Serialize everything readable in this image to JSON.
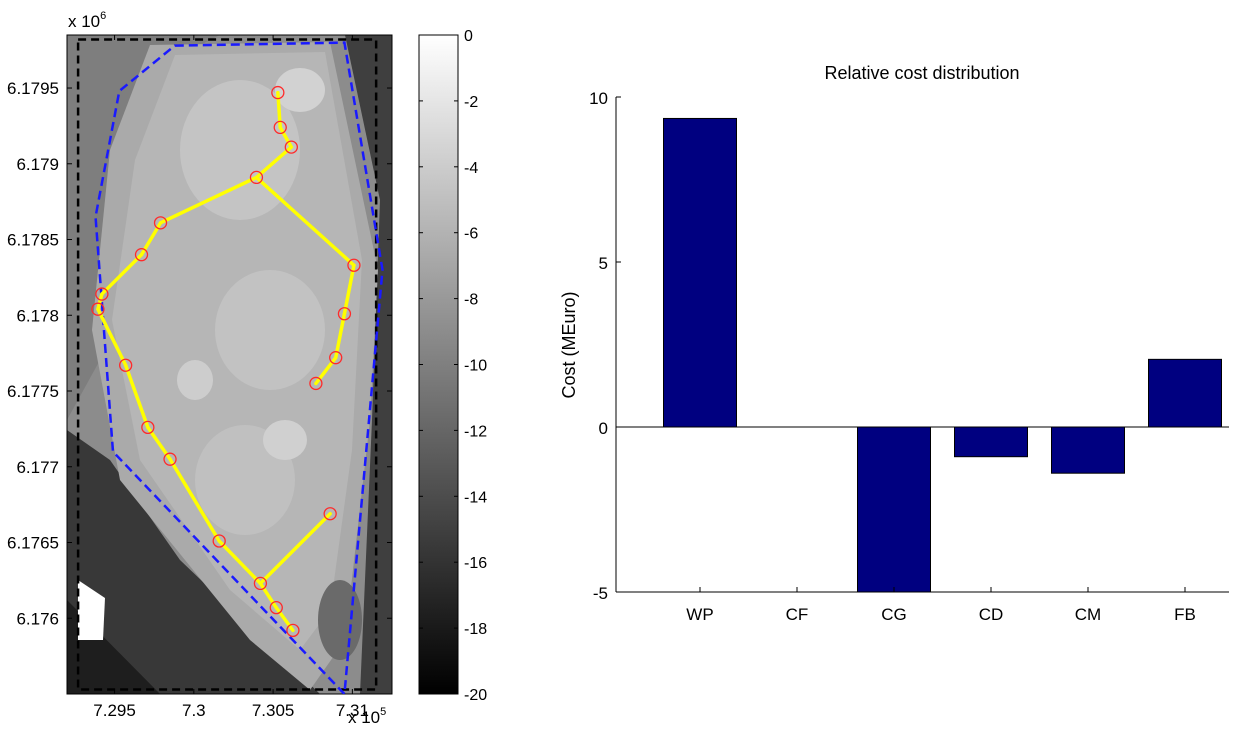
{
  "chart_data": [
    {
      "type": "scatter",
      "subtype": "map-with-layout",
      "title": "",
      "xlabel": "",
      "ylabel": "",
      "x_exponent_label": "x 10",
      "x_exponent": "5",
      "y_exponent_label": "x 10",
      "y_exponent": "6",
      "xlim": [
        729200,
        731250
      ],
      "ylim": [
        6175500,
        6179850
      ],
      "xticks": [
        729500,
        730000,
        730500,
        731000
      ],
      "xtick_labels": [
        "7.295",
        "7.3",
        "7.305",
        "7.31"
      ],
      "yticks": [
        6176000,
        6176500,
        6177000,
        6177500,
        6178000,
        6178500,
        6179000,
        6179500
      ],
      "ytick_labels": [
        "6.176",
        "6.1765",
        "6.177",
        "6.1775",
        "6.178",
        "6.1785",
        "6.179",
        "6.1795"
      ],
      "colorbar": {
        "range": [
          -20,
          0
        ],
        "ticks": [
          0,
          -2,
          -4,
          -6,
          -8,
          -10,
          -12,
          -14,
          -16,
          -18,
          -20
        ],
        "tick_labels": [
          "0",
          "-2",
          "-4",
          "-6",
          "-8",
          "-10",
          "-12",
          "-14",
          "-16",
          "-18",
          "-20"
        ]
      },
      "turbines": [
        {
          "x": 730530,
          "y": 6179470
        },
        {
          "x": 730545,
          "y": 6179240
        },
        {
          "x": 730615,
          "y": 6179110
        },
        {
          "x": 730395,
          "y": 6178910
        },
        {
          "x": 729790,
          "y": 6178610
        },
        {
          "x": 729670,
          "y": 6178400
        },
        {
          "x": 729420,
          "y": 6178140
        },
        {
          "x": 729395,
          "y": 6178040
        },
        {
          "x": 729570,
          "y": 6177670
        },
        {
          "x": 729710,
          "y": 6177260
        },
        {
          "x": 729850,
          "y": 6177050
        },
        {
          "x": 730160,
          "y": 6176510
        },
        {
          "x": 730420,
          "y": 6176230
        },
        {
          "x": 730520,
          "y": 6176070
        },
        {
          "x": 730625,
          "y": 6175920
        },
        {
          "x": 730860,
          "y": 6176690
        },
        {
          "x": 731010,
          "y": 6178330
        },
        {
          "x": 730950,
          "y": 6178010
        },
        {
          "x": 730895,
          "y": 6177720
        },
        {
          "x": 730770,
          "y": 6177550
        }
      ],
      "cables": [
        [
          0,
          1
        ],
        [
          1,
          2
        ],
        [
          2,
          3
        ],
        [
          3,
          4
        ],
        [
          4,
          5
        ],
        [
          5,
          6
        ],
        [
          6,
          7
        ],
        [
          7,
          8
        ],
        [
          8,
          9
        ],
        [
          9,
          10
        ],
        [
          10,
          11
        ],
        [
          11,
          12
        ],
        [
          12,
          13
        ],
        [
          13,
          14
        ],
        [
          12,
          15
        ],
        [
          3,
          16
        ],
        [
          16,
          17
        ],
        [
          17,
          18
        ],
        [
          18,
          19
        ]
      ],
      "blue_boundary": [
        {
          "x": 729880,
          "y": 6179780
        },
        {
          "x": 730950,
          "y": 6179800
        },
        {
          "x": 731190,
          "y": 6178300
        },
        {
          "x": 730950,
          "y": 6175500
        },
        {
          "x": 729490,
          "y": 6177100
        },
        {
          "x": 729380,
          "y": 6178650
        },
        {
          "x": 729530,
          "y": 6179480
        }
      ],
      "black_box": {
        "x0": 729270,
        "x1": 731150,
        "y0": 6175530,
        "y1": 6179820
      }
    },
    {
      "type": "bar",
      "title": "Relative cost distribution",
      "xlabel": "",
      "ylabel": "Cost (MEuro)",
      "categories": [
        "WP",
        "CF",
        "CG",
        "CD",
        "CM",
        "FB"
      ],
      "values": [
        9.35,
        0,
        -5.0,
        -0.9,
        -1.4,
        2.05
      ],
      "ylim": [
        -5,
        10
      ],
      "yticks": [
        -5,
        0,
        5,
        10
      ],
      "ytick_labels": [
        "-5",
        "0",
        "5",
        "10"
      ],
      "bar_color": "#000080",
      "grid": false
    }
  ]
}
